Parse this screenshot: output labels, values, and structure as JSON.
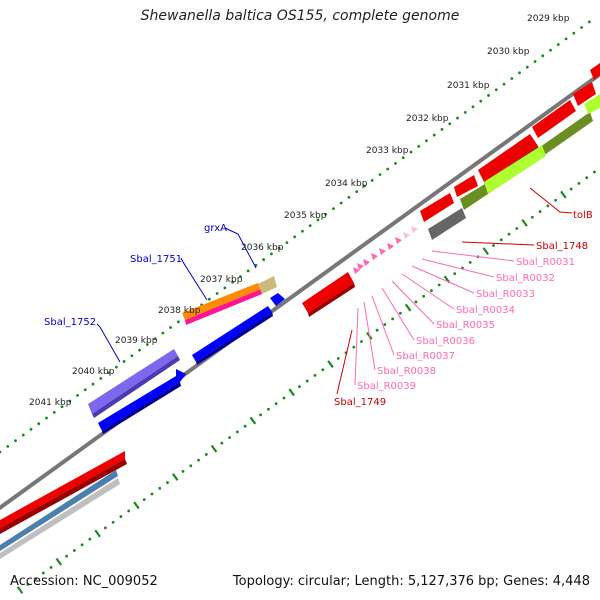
{
  "title": "Shewanella baltica OS155, complete genome",
  "footer": {
    "accession": "Accession: NC_009052",
    "summary": "Topology: circular; Length: 5,127,376 bp; Genes: 4,448"
  },
  "ticks": [
    "2029 kbp",
    "2030 kbp",
    "2031 kbp",
    "2032 kbp",
    "2033 kbp",
    "2034 kbp",
    "2035 kbp",
    "2036 kbp",
    "2037 kbp",
    "2038 kbp",
    "2039 kbp",
    "2040 kbp",
    "2041 kbp"
  ],
  "labels": {
    "grxA": "grxA",
    "sbal1751": "Sbal_1751",
    "sbal1752": "Sbal_1752",
    "tolB": "tolB",
    "sbal1748": "Sbal_1748",
    "sbal1749": "Sbal_1749",
    "rnas": [
      "Sbal_R0031",
      "Sbal_R0032",
      "Sbal_R0033",
      "Sbal_R0034",
      "Sbal_R0035",
      "Sbal_R0036",
      "Sbal_R0037",
      "Sbal_R0038",
      "Sbal_R0039"
    ]
  },
  "colors": {
    "backbone": "#808080",
    "dots": "#1a8a1a",
    "red": "#ff0000",
    "blue": "#0000ff",
    "purple": "#7b68ee",
    "orange": "#ff8c00",
    "magenta": "#ff1493",
    "tan": "#c8b878",
    "olive": "#6b8e23",
    "lime": "#adff2f",
    "darkgray": "#555555",
    "pink": "#ff69b4",
    "steelblue": "#4682b4",
    "lightgray": "#c0c0c0",
    "labelBlue": "#0000cc",
    "labelRed": "#cc0000",
    "labelPink": "#ff69b4"
  }
}
